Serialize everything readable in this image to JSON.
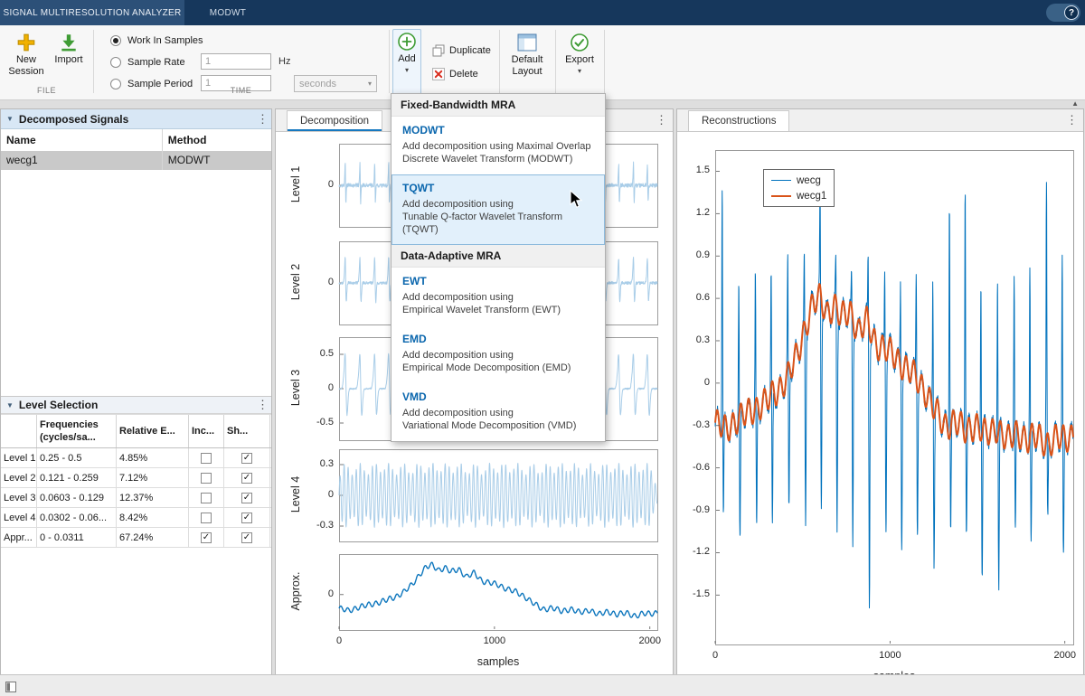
{
  "titlebar": {
    "app_tab": "SIGNAL MULTIRESOLUTION ANALYZER",
    "context_tab": "MODWT",
    "help_label": "?"
  },
  "toolbar": {
    "file_section": "FILE",
    "time_section": "TIME",
    "new_session": "New Session",
    "import": "Import",
    "work_in_samples": "Work In Samples",
    "sample_rate": "Sample Rate",
    "sample_rate_value": "1",
    "sample_rate_unit": "Hz",
    "sample_period": "Sample Period",
    "sample_period_value": "1",
    "sample_period_unit": "seconds",
    "add": "Add",
    "duplicate": "Duplicate",
    "delete": "Delete",
    "default_layout": "Default Layout",
    "export": "Export"
  },
  "add_menu": {
    "sections": [
      {
        "header": "Fixed-Bandwidth MRA",
        "items": [
          {
            "title": "MODWT",
            "desc_lines": [
              "Add decomposition using Maximal Overlap",
              "Discrete Wavelet Transform (MODWT)"
            ],
            "highlighted": false
          },
          {
            "title": "TQWT",
            "desc_lines": [
              "Add decomposition using",
              "Tunable Q-factor Wavelet Transform (TQWT)"
            ],
            "highlighted": true
          }
        ]
      },
      {
        "header": "Data-Adaptive MRA",
        "items": [
          {
            "title": "EWT",
            "desc_lines": [
              "Add decomposition using",
              "Empirical Wavelet Transform (EWT)"
            ],
            "highlighted": false
          },
          {
            "title": "EMD",
            "desc_lines": [
              "Add decomposition using",
              "Empirical Mode Decomposition (EMD)"
            ],
            "highlighted": false
          },
          {
            "title": "VMD",
            "desc_lines": [
              "Add decomposition using",
              "Variational Mode Decomposition (VMD)"
            ],
            "highlighted": false
          }
        ]
      }
    ]
  },
  "decomposed_signals": {
    "header": "Decomposed Signals",
    "columns": [
      "Name",
      "Method"
    ],
    "rows": [
      {
        "name": "wecg1",
        "method": "MODWT",
        "selected": true
      }
    ]
  },
  "level_selection": {
    "header": "Level Selection",
    "columns": [
      "",
      "Frequencies (cycles/sa...",
      "Relative E...",
      "Inc...",
      "Sh..."
    ],
    "rows": [
      {
        "label": "Level 1",
        "freq": "0.25 - 0.5",
        "energy": "4.85%",
        "include": false,
        "show": true
      },
      {
        "label": "Level 2",
        "freq": "0.121 - 0.259",
        "energy": "7.12%",
        "include": false,
        "show": true
      },
      {
        "label": "Level 3",
        "freq": "0.0603 - 0.129",
        "energy": "12.37%",
        "include": false,
        "show": true
      },
      {
        "label": "Level 4",
        "freq": "0.0302 - 0.06...",
        "energy": "8.42%",
        "include": false,
        "show": true
      },
      {
        "label": "Appr...",
        "freq": "0 - 0.0311",
        "energy": "67.24%",
        "include": true,
        "show": true
      }
    ]
  },
  "panels": {
    "decomposition_tab": "Decomposition",
    "reconstructions_tab": "Reconstructions"
  },
  "colors": {
    "detail_line": "#a9cde8",
    "approx_line": "#0d76bd",
    "wecg_line": "#0072bd",
    "wecg1_line": "#d95319",
    "accent": "#1779c0"
  },
  "chart_data": [
    {
      "type": "line",
      "title": "Decomposition",
      "xlabel": "samples",
      "xlim": [
        0,
        2048
      ],
      "xticks": [
        "0",
        "1000",
        "2000"
      ],
      "xtick_values": [
        0,
        1000,
        2000
      ],
      "grid": false,
      "subplots": [
        {
          "ylabel": "Level 1",
          "ylim": [
            -0.42,
            0.42
          ],
          "yticks": [
            "0"
          ],
          "ytick_values": [
            0
          ],
          "series": "detail1"
        },
        {
          "ylabel": "Level 2",
          "ylim": [
            -0.45,
            0.45
          ],
          "yticks": [
            "0"
          ],
          "ytick_values": [
            0
          ],
          "series": "detail2"
        },
        {
          "ylabel": "Level 3",
          "ylim": [
            -0.75,
            0.75
          ],
          "yticks": [
            "0.5",
            "0",
            "-0.5"
          ],
          "ytick_values": [
            0.5,
            0,
            -0.5
          ],
          "series": "detail3"
        },
        {
          "ylabel": "Level 4",
          "ylim": [
            -0.45,
            0.45
          ],
          "yticks": [
            "0.3",
            "0",
            "-0.3"
          ],
          "ytick_values": [
            0.3,
            0,
            -0.3
          ],
          "series": "detail4"
        },
        {
          "ylabel": "Approx.",
          "ylim": [
            -0.7,
            0.8
          ],
          "yticks": [
            "0"
          ],
          "ytick_values": [
            0
          ],
          "series": "approx"
        }
      ]
    },
    {
      "type": "line",
      "title": "Reconstructions",
      "xlabel": "samples",
      "xlim": [
        0,
        2048
      ],
      "ylim": [
        -1.85,
        1.65
      ],
      "xticks": [
        "0",
        "1000",
        "2000"
      ],
      "xtick_values": [
        0,
        1000,
        2000
      ],
      "yticks": [
        "1.5",
        "1.2",
        "0.9",
        "0.6",
        "0.3",
        "0",
        "-0.3",
        "-0.6",
        "-0.9",
        "-1.2",
        "-1.5"
      ],
      "ytick_values": [
        1.5,
        1.2,
        0.9,
        0.6,
        0.3,
        0,
        -0.3,
        -0.6,
        -0.9,
        -1.2,
        -1.5
      ],
      "grid": false,
      "legend": {
        "position": "upper-left",
        "entries": [
          {
            "label": "wecg",
            "series": "wecg"
          },
          {
            "label": "wecg1",
            "series": "wecg1"
          }
        ]
      },
      "series": [
        "wecg",
        "wecg1"
      ]
    }
  ],
  "signal_model": {
    "beats": [
      40,
      135,
      230,
      320,
      415,
      510,
      600,
      690,
      780,
      875,
      970,
      1060,
      1150,
      1245,
      1340,
      1430,
      1520,
      1615,
      1710,
      1800,
      1895,
      1985
    ],
    "r_peaks": [
      1.45,
      0.75,
      0.8,
      0.78,
      0.85,
      0.9,
      1.42,
      0.88,
      0.82,
      0.9,
      0.86,
      0.8,
      0.84,
      0.82,
      1.4,
      1.45,
      0.82,
      0.86,
      0.8,
      0.84,
      1.44,
      0.9
    ],
    "s_troughs": [
      -0.95,
      -1.2,
      -1.05,
      -1.1,
      -0.98,
      -1.02,
      -0.92,
      -1.05,
      -1.12,
      -1.5,
      -1.0,
      -1.1,
      -1.02,
      -1.22,
      -0.96,
      -1.04,
      -1.35,
      -1.45,
      -1.1,
      -1.2,
      -1.02,
      -1.32
    ],
    "baseline": [
      [
        0,
        -0.28
      ],
      [
        60,
        -0.33
      ],
      [
        120,
        -0.26
      ],
      [
        180,
        -0.22
      ],
      [
        240,
        -0.17
      ],
      [
        300,
        -0.12
      ],
      [
        360,
        -0.05
      ],
      [
        420,
        0.06
      ],
      [
        470,
        0.2
      ],
      [
        520,
        0.42
      ],
      [
        560,
        0.56
      ],
      [
        600,
        0.6
      ],
      [
        640,
        0.5
      ],
      [
        680,
        0.55
      ],
      [
        720,
        0.46
      ],
      [
        770,
        0.52
      ],
      [
        820,
        0.36
      ],
      [
        870,
        0.44
      ],
      [
        920,
        0.28
      ],
      [
        970,
        0.24
      ],
      [
        1020,
        0.2
      ],
      [
        1080,
        0.12
      ],
      [
        1140,
        0.05
      ],
      [
        1200,
        -0.05
      ],
      [
        1260,
        -0.2
      ],
      [
        1310,
        -0.3
      ],
      [
        1370,
        -0.27
      ],
      [
        1430,
        -0.34
      ],
      [
        1490,
        -0.29
      ],
      [
        1550,
        -0.37
      ],
      [
        1610,
        -0.31
      ],
      [
        1670,
        -0.41
      ],
      [
        1730,
        -0.34
      ],
      [
        1790,
        -0.41
      ],
      [
        1850,
        -0.37
      ],
      [
        1910,
        -0.44
      ],
      [
        1960,
        -0.39
      ],
      [
        2048,
        -0.37
      ]
    ],
    "ripple": {
      "amp": 0.09,
      "period": 45
    },
    "detail_amps": {
      "detail1": 0.25,
      "detail2": 0.3,
      "detail3": 0.55
    },
    "detail_widths": {
      "detail1": 1.6,
      "detail2": 2.6,
      "detail3": 4.5
    },
    "oscillation": {
      "period": 26,
      "base": 0.05,
      "burst": 0.26,
      "width": 30
    }
  },
  "misc": {
    "collapse_arrow": "▲",
    "menu_dots": "⋮",
    "dropdown_arrow": "▾",
    "panel_collapse": "▼",
    "check_glyph": "✓"
  }
}
